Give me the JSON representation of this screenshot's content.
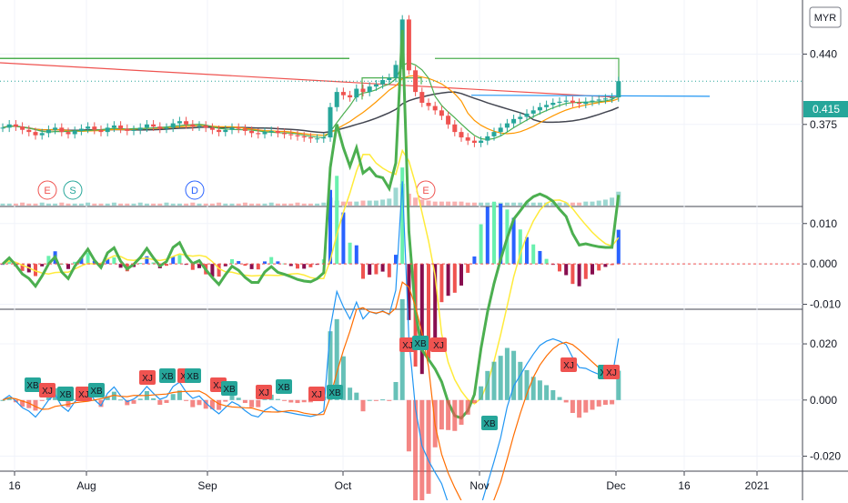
{
  "chart_data": [
    {
      "type": "candlestick",
      "pane": "price",
      "currency_badge": "MYR",
      "last_price_label": "0.415",
      "y_tick_labels": [
        "0.440",
        "0.375"
      ],
      "y_tick_values": [
        0.44,
        0.375
      ],
      "ylim": [
        0.3,
        0.49
      ],
      "x_tick_labels": [
        "16",
        "Aug",
        "Sep",
        "Oct",
        "Nov",
        "Dec",
        "16",
        "2021"
      ],
      "event_markers": [
        {
          "label": "E",
          "color": "#ef5350"
        },
        {
          "label": "S",
          "color": "#26a69a"
        },
        {
          "label": "D",
          "color": "#2962ff"
        },
        {
          "label": "E",
          "color": "#ef5350"
        }
      ],
      "colors": {
        "up": "#26a69a",
        "down": "#ef5350",
        "ma_red": "#ef5350",
        "ma_green": "#4caf50",
        "ma_orange": "#ff9800",
        "ma_black": "#434651",
        "blue_line": "#2196f3"
      },
      "closes": [
        0.372,
        0.375,
        0.373,
        0.37,
        0.368,
        0.365,
        0.367,
        0.37,
        0.372,
        0.368,
        0.366,
        0.369,
        0.371,
        0.373,
        0.37,
        0.368,
        0.372,
        0.374,
        0.371,
        0.369,
        0.37,
        0.372,
        0.375,
        0.373,
        0.371,
        0.372,
        0.376,
        0.378,
        0.375,
        0.373,
        0.374,
        0.372,
        0.37,
        0.368,
        0.37,
        0.372,
        0.371,
        0.369,
        0.367,
        0.366,
        0.368,
        0.369,
        0.367,
        0.366,
        0.365,
        0.364,
        0.363,
        0.362,
        0.362,
        0.363,
        0.391,
        0.405,
        0.402,
        0.4,
        0.408,
        0.405,
        0.41,
        0.412,
        0.416,
        0.418,
        0.43,
        0.472,
        0.425,
        0.405,
        0.395,
        0.392,
        0.388,
        0.383,
        0.375,
        0.368,
        0.363,
        0.36,
        0.358,
        0.36,
        0.364,
        0.368,
        0.372,
        0.376,
        0.38,
        0.382,
        0.385,
        0.388,
        0.391,
        0.393,
        0.395,
        0.396,
        0.397,
        0.395,
        0.394,
        0.396,
        0.397,
        0.398,
        0.399,
        0.4,
        0.415
      ],
      "volume": [
        2,
        2,
        2,
        3,
        2,
        2,
        3,
        2,
        2,
        3,
        2,
        2,
        2,
        3,
        2,
        2,
        2,
        3,
        2,
        2,
        2,
        3,
        2,
        2,
        2,
        3,
        2,
        2,
        2,
        3,
        2,
        2,
        2,
        3,
        2,
        2,
        2,
        3,
        2,
        2,
        2,
        3,
        2,
        2,
        2,
        3,
        2,
        2,
        2,
        3,
        8,
        5,
        4,
        4,
        4,
        5,
        5,
        5,
        6,
        7,
        18,
        22,
        12,
        8,
        6,
        5,
        4,
        4,
        4,
        4,
        4,
        3,
        3,
        3,
        3,
        3,
        3,
        3,
        3,
        3,
        3,
        3,
        3,
        3,
        3,
        3,
        3,
        3,
        3,
        4,
        4,
        5,
        6,
        8,
        14
      ]
    },
    {
      "type": "line_histogram",
      "pane": "oscillator_1",
      "y_tick_labels": [
        "0.010",
        "0.000",
        "-0.010"
      ],
      "y_tick_values": [
        0.01,
        0.0,
        -0.01
      ],
      "ylim": [
        -0.011,
        0.014
      ]
    },
    {
      "type": "line_histogram",
      "pane": "oscillator_2",
      "y_tick_labels": [
        "0.020",
        "0.000",
        "-0.020"
      ],
      "y_tick_values": [
        0.02,
        0.0,
        -0.02
      ],
      "ylim": [
        -0.025,
        0.032
      ],
      "signal_labels": [
        "XB",
        "XJ",
        "XB",
        "XJ",
        "XB",
        "XJ",
        "XB",
        "XJ",
        "XB",
        "XJ",
        "XB",
        "XJ",
        "XB",
        "XJ",
        "XB",
        "XJ",
        "XB",
        "XJ",
        "XB",
        "XJ",
        "XB",
        "XJ",
        "XB",
        "XJ",
        "XB",
        "XB",
        "XJ",
        "XJ",
        "XB",
        "XB"
      ],
      "signal_colors": {
        "XB": "#26a69a",
        "XJ": "#ef5350"
      }
    }
  ]
}
